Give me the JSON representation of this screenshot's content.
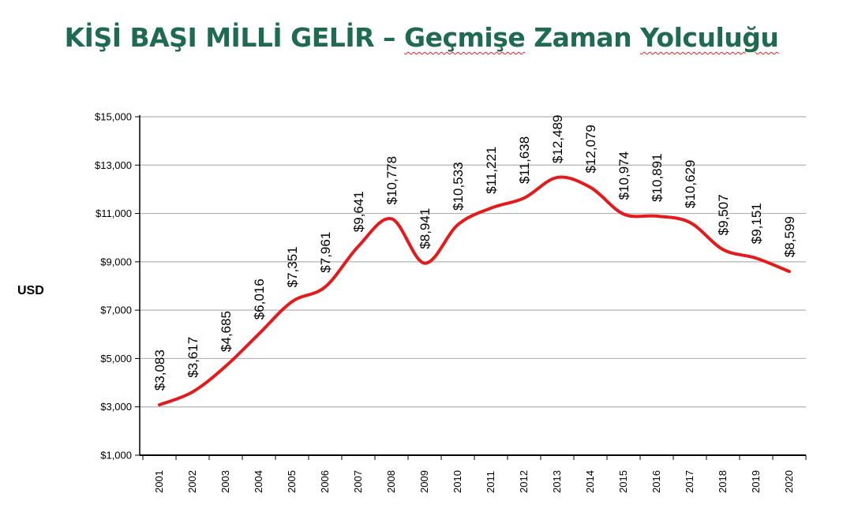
{
  "title": {
    "part1": "KİŞİ BAŞI MİLLİ GELİR – ",
    "part2": "Geçmişe",
    "part3": " Zaman ",
    "part4": "Yolculuğu"
  },
  "chart_data": {
    "type": "line",
    "title": "KİŞİ BAŞI MİLLİ GELİR – Geçmişe Zaman Yolculuğu",
    "ylabel": "USD",
    "xlabel": "",
    "x": [
      "2001",
      "2002",
      "2003",
      "2004",
      "2005",
      "2006",
      "2007",
      "2008",
      "2009",
      "2010",
      "2011",
      "2012",
      "2013",
      "2014",
      "2015",
      "2016",
      "2017",
      "2018",
      "2019",
      "2020"
    ],
    "series": [
      {
        "values": [
          3083,
          3617,
          4685,
          6016,
          7351,
          7961,
          9641,
          10778,
          8941,
          10533,
          11221,
          11638,
          12489,
          12079,
          10974,
          10891,
          10629,
          9507,
          9151,
          8599
        ],
        "labels": [
          "$3,083",
          "$3,617",
          "$4,685",
          "$6,016",
          "$7,351",
          "$7,961",
          "$9,641",
          "$10,778",
          "$8,941",
          "$10,533",
          "$11,221",
          "$11,638",
          "$12,489",
          "$12,079",
          "$10,974",
          "$10,891",
          "$10,629",
          "$9,507",
          "$9,151",
          "$8,599"
        ],
        "color": "#e41a1c"
      }
    ],
    "ylim": [
      1000,
      15000
    ],
    "yticks": [
      1000,
      3000,
      5000,
      7000,
      9000,
      11000,
      13000,
      15000
    ],
    "ytick_labels": [
      "$1,000",
      "$3,000",
      "$5,000",
      "$7,000",
      "$9,000",
      "$11,000",
      "$13,000",
      "$15,000"
    ],
    "grid": true,
    "gridline_color": "#b3b3b3",
    "line_color": "#e41a1c",
    "smooth": true
  }
}
